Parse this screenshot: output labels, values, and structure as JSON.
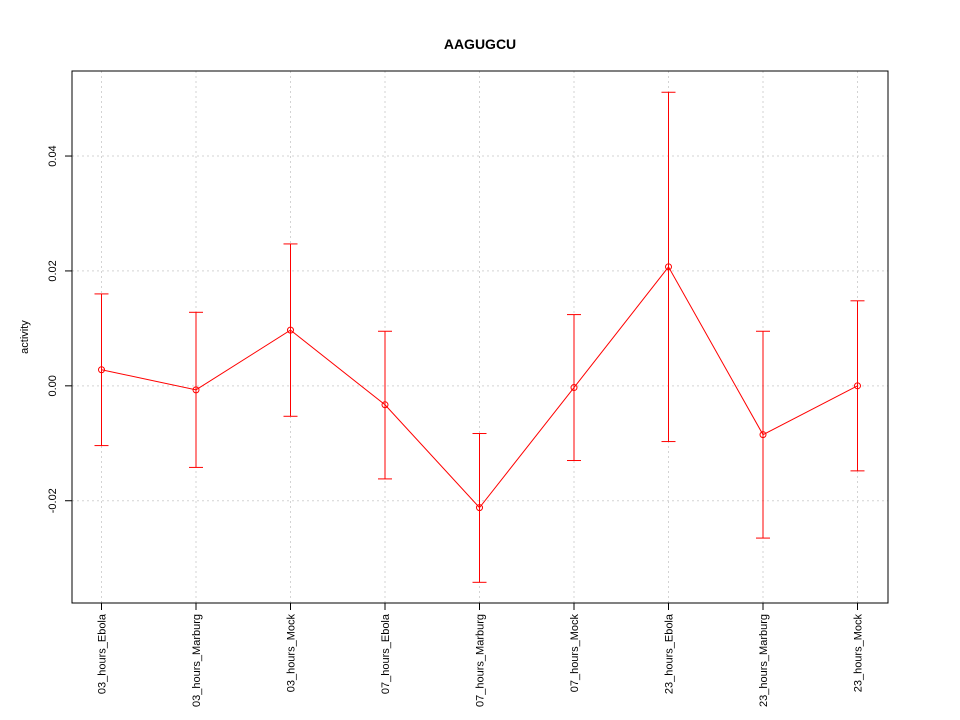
{
  "chart_data": {
    "type": "line",
    "title": "AAGUGCU",
    "ylabel": "activity",
    "xlabel": "",
    "categories": [
      "03_hours_Ebola",
      "03_hours_Marburg",
      "03_hours_Mock",
      "07_hours_Ebola",
      "07_hours_Marburg",
      "07_hours_Mock",
      "23_hours_Ebola",
      "23_hours_Marburg",
      "23_hours_Mock"
    ],
    "series": [
      {
        "values": [
          0.0028,
          -0.0007,
          0.0097,
          -0.0033,
          -0.0212,
          -0.0003,
          0.0207,
          -0.0085,
          0.0
        ],
        "upper": [
          0.016,
          0.0128,
          0.0247,
          0.0095,
          -0.0083,
          0.0124,
          0.0511,
          0.0095,
          0.0148
        ],
        "lower": [
          -0.0104,
          -0.0142,
          -0.0053,
          -0.0162,
          -0.0342,
          -0.013,
          -0.0097,
          -0.0265,
          -0.0148
        ]
      }
    ],
    "yticks": [
      -0.02,
      0.0,
      0.02,
      0.04
    ],
    "ytick_labels": [
      "-0.02",
      "0.00",
      "0.02",
      "0.04"
    ],
    "ylim": [
      -0.0378,
      0.0548
    ],
    "grid": true,
    "colors": {
      "series": "#ff0000",
      "grid": "#d3d3d3",
      "axis": "#000000"
    }
  }
}
